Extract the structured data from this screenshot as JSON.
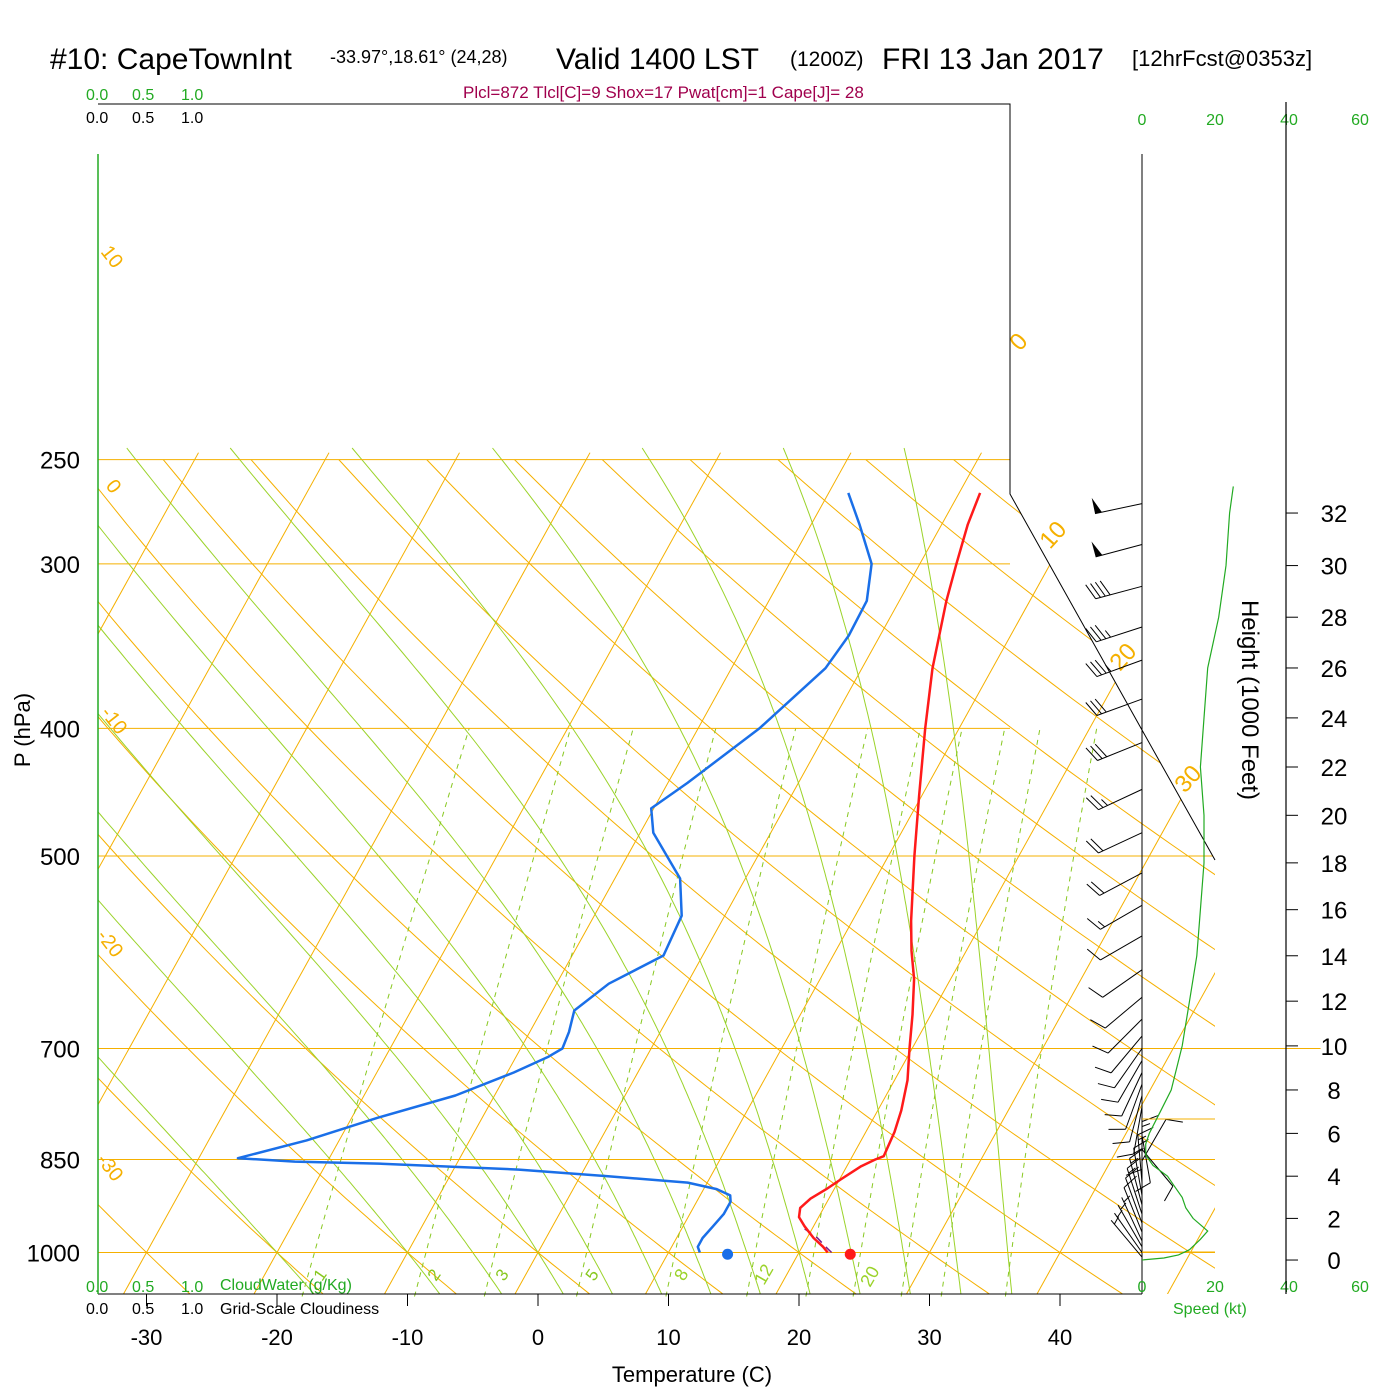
{
  "title": {
    "station": "#10: CapeTownInt",
    "coords": "-33.97°,18.61° (24,28)",
    "valid": "Valid 1400 LST",
    "zulu": "(1200Z)",
    "date": "FRI 13 Jan 2017",
    "forecast": "[12hrFcst@0353z]"
  },
  "indices": "Plcl=872 Tlcl[C]=9 Shox=17 Pwat[cm]=1 Cape[J]= 28",
  "colors": {
    "temperature": "#ff1a1a",
    "dewpoint": "#1a6fe8",
    "isotherm": "#f5b000",
    "moist_adiabat": "#9bd32a",
    "mixing_ratio": "#88c820",
    "height_curve": "#22aa22",
    "parcel": "#7a1a8a",
    "indices_text": "#a0004d"
  },
  "cloud_scale_top": {
    "green": [
      "0.0",
      "0.5",
      "1.0"
    ],
    "black": [
      "0.0",
      "0.5",
      "1.0"
    ]
  },
  "cloud_scale_bottom": {
    "green": [
      "0.0",
      "0.5",
      "1.0"
    ],
    "green_label": "CloudWater (g/Kg)",
    "black": [
      "0.0",
      "0.5",
      "1.0"
    ],
    "black_label": "Grid-Scale Cloudiness"
  },
  "speed_ticks_top": [
    "0",
    "20",
    "40",
    "60"
  ],
  "speed_ticks_bottom": [
    "0",
    "20",
    "40",
    "60"
  ],
  "speed_label": "Speed (kt)",
  "chart_data": {
    "type": "line",
    "xlabel": "Temperature (C)",
    "ylabel": "P (hPa)",
    "y2label": "Height (1000 Feet)",
    "x_ticks": [
      -30,
      -20,
      -10,
      0,
      10,
      20,
      30,
      40
    ],
    "p_ticks": [
      250,
      300,
      400,
      500,
      700,
      850,
      1000
    ],
    "height_ticks": [
      0,
      2,
      4,
      6,
      8,
      10,
      12,
      14,
      16,
      18,
      20,
      22,
      24,
      26,
      28,
      30,
      32
    ],
    "isotherm_labels": [
      "10",
      "0",
      "-10",
      "-20",
      "-30",
      "0",
      "10",
      "20",
      "30"
    ],
    "wet_adiabat_labels": [
      "8",
      "12",
      "20"
    ],
    "mixing_ratio_labels": [
      "1",
      "2",
      "3",
      "5"
    ],
    "series": [
      {
        "name": "temperature",
        "points": [
          [
            1000,
            22.2
          ],
          [
            990,
            21.6
          ],
          [
            975,
            20.5
          ],
          [
            955,
            19.3
          ],
          [
            940,
            18.5
          ],
          [
            925,
            18.2
          ],
          [
            910,
            18.6
          ],
          [
            895,
            19.4
          ],
          [
            880,
            20.1
          ],
          [
            860,
            21.1
          ],
          [
            850,
            21.9
          ],
          [
            845,
            22.4
          ],
          [
            810,
            22.2
          ],
          [
            780,
            21.8
          ],
          [
            740,
            21.0
          ],
          [
            700,
            19.8
          ],
          [
            660,
            18.6
          ],
          [
            620,
            17.2
          ],
          [
            590,
            15.8
          ],
          [
            560,
            14.5
          ],
          [
            500,
            12.0
          ],
          [
            450,
            9.8
          ],
          [
            400,
            7.4
          ],
          [
            360,
            5.4
          ],
          [
            320,
            3.6
          ],
          [
            300,
            2.8
          ],
          [
            280,
            2.0
          ],
          [
            265,
            1.6
          ]
        ]
      },
      {
        "name": "dewpoint",
        "points": [
          [
            1000,
            12.4
          ],
          [
            990,
            12.0
          ],
          [
            975,
            12.0
          ],
          [
            955,
            12.3
          ],
          [
            935,
            12.6
          ],
          [
            915,
            12.6
          ],
          [
            905,
            12.3
          ],
          [
            895,
            11.0
          ],
          [
            885,
            8.5
          ],
          [
            875,
            2.0
          ],
          [
            865,
            -5.0
          ],
          [
            856,
            -16.0
          ],
          [
            853,
            -22.5
          ],
          [
            848,
            -27.0
          ],
          [
            822,
            -22.5
          ],
          [
            790,
            -18.0
          ],
          [
            760,
            -13.0
          ],
          [
            730,
            -9.5
          ],
          [
            710,
            -7.5
          ],
          [
            700,
            -6.8
          ],
          [
            680,
            -7.0
          ],
          [
            655,
            -7.5
          ],
          [
            625,
            -6.0
          ],
          [
            595,
            -3.0
          ],
          [
            555,
            -3.3
          ],
          [
            520,
            -5.0
          ],
          [
            480,
            -9.0
          ],
          [
            460,
            -10.2
          ],
          [
            440,
            -8.5
          ],
          [
            400,
            -5.3
          ],
          [
            360,
            -2.8
          ],
          [
            340,
            -2.4
          ],
          [
            320,
            -2.5
          ],
          [
            300,
            -3.7
          ],
          [
            280,
            -6.3
          ],
          [
            265,
            -8.5
          ]
        ]
      },
      {
        "name": "parcel",
        "points": [
          [
            1000,
            22.5
          ],
          [
            990,
            21.8
          ],
          [
            975,
            20.8
          ],
          [
            958,
            19.3
          ]
        ]
      }
    ],
    "surface_markers": {
      "temperature": 24.0,
      "dewpoint": 14.6,
      "pressure": 1003
    },
    "wind_barbs": [
      {
        "p": 1008,
        "dir": 320,
        "spd": 3
      },
      {
        "p": 1000,
        "dir": 325,
        "spd": 4
      },
      {
        "p": 990,
        "dir": 330,
        "spd": 5
      },
      {
        "p": 980,
        "dir": 335,
        "spd": 7
      },
      {
        "p": 965,
        "dir": 338,
        "spd": 9
      },
      {
        "p": 950,
        "dir": 340,
        "spd": 11
      },
      {
        "p": 935,
        "dir": 342,
        "spd": 13
      },
      {
        "p": 920,
        "dir": 345,
        "spd": 15
      },
      {
        "p": 905,
        "dir": 350,
        "spd": 16
      },
      {
        "p": 885,
        "dir": 355,
        "spd": 16
      },
      {
        "p": 865,
        "dir": 0,
        "spd": 14
      },
      {
        "p": 852,
        "dir": 30,
        "spd": 12
      },
      {
        "p": 835,
        "dir": 140,
        "spd": 8
      },
      {
        "p": 815,
        "dir": 170,
        "spd": 9
      },
      {
        "p": 795,
        "dir": 180,
        "spd": 10
      },
      {
        "p": 775,
        "dir": 190,
        "spd": 10
      },
      {
        "p": 760,
        "dir": 195,
        "spd": 10
      },
      {
        "p": 745,
        "dir": 200,
        "spd": 10
      },
      {
        "p": 730,
        "dir": 205,
        "spd": 10
      },
      {
        "p": 715,
        "dir": 210,
        "spd": 10
      },
      {
        "p": 700,
        "dir": 215,
        "spd": 10
      },
      {
        "p": 685,
        "dir": 220,
        "spd": 10
      },
      {
        "p": 665,
        "dir": 225,
        "spd": 10
      },
      {
        "p": 640,
        "dir": 230,
        "spd": 10
      },
      {
        "p": 610,
        "dir": 235,
        "spd": 10
      },
      {
        "p": 575,
        "dir": 240,
        "spd": 10
      },
      {
        "p": 545,
        "dir": 240,
        "spd": 15
      },
      {
        "p": 515,
        "dir": 242,
        "spd": 20
      },
      {
        "p": 480,
        "dir": 245,
        "spd": 20
      },
      {
        "p": 445,
        "dir": 245,
        "spd": 25
      },
      {
        "p": 410,
        "dir": 248,
        "spd": 30
      },
      {
        "p": 380,
        "dir": 250,
        "spd": 30
      },
      {
        "p": 355,
        "dir": 250,
        "spd": 35
      },
      {
        "p": 335,
        "dir": 252,
        "spd": 35
      },
      {
        "p": 312,
        "dir": 255,
        "spd": 40
      },
      {
        "p": 290,
        "dir": 255,
        "spd": 50
      },
      {
        "p": 270,
        "dir": 258,
        "spd": 50
      }
    ],
    "wind_speed_profile": [
      [
        0,
        0
      ],
      [
        0.1,
        6
      ],
      [
        0.25,
        10
      ],
      [
        0.5,
        13
      ],
      [
        1,
        16
      ],
      [
        1.4,
        18
      ],
      [
        2,
        14
      ],
      [
        2.5,
        12
      ],
      [
        3,
        11
      ],
      [
        3.5,
        9
      ],
      [
        4,
        7
      ],
      [
        4.5,
        3
      ],
      [
        5,
        1
      ],
      [
        5.5,
        1
      ],
      [
        6,
        2
      ],
      [
        7,
        5
      ],
      [
        8,
        8
      ],
      [
        10,
        11
      ],
      [
        12,
        13
      ],
      [
        14,
        15
      ],
      [
        16,
        16
      ],
      [
        18,
        17
      ],
      [
        20,
        17
      ],
      [
        22,
        16
      ],
      [
        24,
        17
      ],
      [
        26,
        18
      ],
      [
        28,
        21
      ],
      [
        30,
        23
      ],
      [
        32,
        24
      ],
      [
        33,
        25
      ]
    ]
  }
}
